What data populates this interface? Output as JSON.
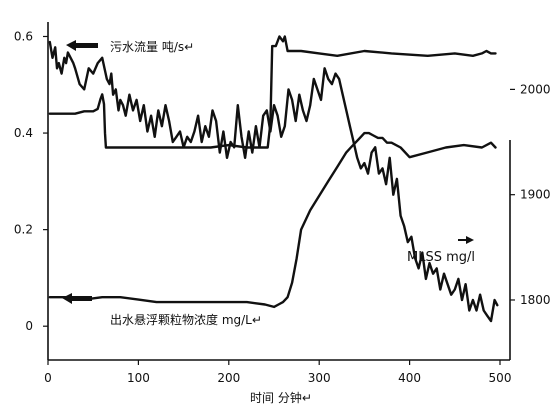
{
  "chart_data": {
    "type": "line",
    "xlabel": "时间  分钟↵",
    "x_ticks": [
      0,
      100,
      200,
      300,
      400,
      500
    ],
    "xlim": [
      0,
      500
    ],
    "y_left": {
      "ticks": [
        0,
        0.2,
        0.4,
        0.6
      ],
      "tick_labels": [
        "0",
        "0.2",
        "0.4",
        "0.6"
      ],
      "lim": [
        -0.07,
        0.63
      ]
    },
    "y_right": {
      "ticks": [
        1800,
        1900,
        2000
      ],
      "tick_labels": [
        "1800",
        "1900",
        "2000"
      ],
      "lim": [
        1743,
        2064
      ]
    },
    "annotations": {
      "flow": "污水流量  吨/s↵",
      "ss": "出水悬浮颗粒物浓度  mg/L↵",
      "mlss": "MLSS mg/l"
    },
    "series": [
      {
        "name": "污水流量  吨/s",
        "axis": "left",
        "x": [
          2,
          10,
          20,
          30,
          40,
          50,
          55,
          58,
          60,
          62,
          63,
          64,
          66,
          80,
          100,
          120,
          140,
          160,
          180,
          200,
          220,
          230,
          238,
          243,
          246,
          248,
          250,
          252,
          256,
          260,
          262,
          265,
          270,
          280,
          300,
          320,
          350,
          380,
          420,
          450,
          470,
          480,
          485,
          490,
          495
        ],
        "y": [
          0.44,
          0.44,
          0.44,
          0.44,
          0.445,
          0.445,
          0.45,
          0.47,
          0.48,
          0.46,
          0.4,
          0.37,
          0.37,
          0.37,
          0.37,
          0.37,
          0.37,
          0.37,
          0.37,
          0.375,
          0.37,
          0.37,
          0.37,
          0.37,
          0.42,
          0.58,
          0.58,
          0.58,
          0.6,
          0.59,
          0.6,
          0.57,
          0.57,
          0.57,
          0.565,
          0.56,
          0.57,
          0.565,
          0.56,
          0.565,
          0.56,
          0.565,
          0.57,
          0.565,
          0.565
        ]
      },
      {
        "name": "出水悬浮颗粒物浓度  mg/L",
        "axis": "left",
        "x": [
          2,
          20,
          40,
          60,
          80,
          100,
          120,
          140,
          160,
          180,
          200,
          220,
          240,
          250,
          255,
          260,
          265,
          270,
          275,
          280,
          290,
          300,
          310,
          320,
          330,
          335,
          340,
          345,
          350,
          355,
          360,
          365,
          370,
          375,
          380,
          390,
          400,
          420,
          440,
          460,
          480,
          490,
          495
        ],
        "y": [
          0.06,
          0.06,
          0.055,
          0.06,
          0.06,
          0.055,
          0.05,
          0.05,
          0.05,
          0.05,
          0.05,
          0.05,
          0.045,
          0.04,
          0.045,
          0.05,
          0.06,
          0.09,
          0.14,
          0.2,
          0.24,
          0.27,
          0.3,
          0.33,
          0.36,
          0.37,
          0.38,
          0.39,
          0.4,
          0.4,
          0.395,
          0.39,
          0.39,
          0.38,
          0.38,
          0.37,
          0.35,
          0.36,
          0.37,
          0.375,
          0.37,
          0.38,
          0.37
        ]
      },
      {
        "name": "MLSS mg/l",
        "axis": "right",
        "x": [
          2,
          5,
          8,
          10,
          12,
          15,
          18,
          20,
          22,
          25,
          28,
          30,
          35,
          40,
          45,
          50,
          55,
          60,
          65,
          68,
          70,
          72,
          75,
          78,
          80,
          83,
          86,
          90,
          94,
          98,
          102,
          106,
          110,
          114,
          118,
          122,
          126,
          130,
          134,
          138,
          142,
          146,
          150,
          154,
          158,
          162,
          166,
          170,
          174,
          178,
          182,
          186,
          190,
          194,
          198,
          202,
          206,
          210,
          214,
          218,
          222,
          226,
          230,
          234,
          238,
          242,
          246,
          250,
          254,
          258,
          262,
          266,
          270,
          274,
          278,
          282,
          286,
          290,
          294,
          298,
          302,
          306,
          310,
          314,
          318,
          322,
          326,
          330,
          334,
          338,
          342,
          346,
          350,
          354,
          358,
          362,
          366,
          370,
          374,
          378,
          382,
          386,
          390,
          394,
          398,
          402,
          406,
          410,
          414,
          418,
          422,
          426,
          430,
          434,
          438,
          442,
          446,
          450,
          454,
          458,
          462,
          466,
          470,
          474,
          478,
          482,
          486,
          490,
          494,
          497
        ],
        "y": [
          2045,
          2030,
          2040,
          2020,
          2025,
          2015,
          2030,
          2025,
          2035,
          2030,
          2025,
          2020,
          2005,
          2000,
          2020,
          2015,
          2025,
          2030,
          2010,
          2005,
          2015,
          1995,
          2000,
          1980,
          1990,
          1985,
          1975,
          1995,
          1980,
          1990,
          1970,
          1985,
          1960,
          1975,
          1955,
          1980,
          1965,
          1985,
          1970,
          1950,
          1955,
          1960,
          1945,
          1955,
          1950,
          1960,
          1975,
          1950,
          1965,
          1955,
          1980,
          1970,
          1940,
          1960,
          1935,
          1950,
          1945,
          1985,
          1955,
          1935,
          1960,
          1940,
          1965,
          1945,
          1975,
          1980,
          1960,
          1985,
          1975,
          1955,
          1965,
          2000,
          1990,
          1970,
          1995,
          1980,
          1970,
          1985,
          2010,
          2000,
          1990,
          2020,
          2010,
          2005,
          2015,
          2010,
          1995,
          1980,
          1965,
          1950,
          1935,
          1925,
          1930,
          1920,
          1940,
          1945,
          1920,
          1925,
          1910,
          1935,
          1900,
          1915,
          1880,
          1870,
          1855,
          1860,
          1840,
          1830,
          1845,
          1820,
          1835,
          1825,
          1830,
          1810,
          1825,
          1815,
          1805,
          1810,
          1820,
          1800,
          1815,
          1790,
          1800,
          1790,
          1805,
          1790,
          1785,
          1780,
          1800,
          1795
        ]
      }
    ]
  }
}
